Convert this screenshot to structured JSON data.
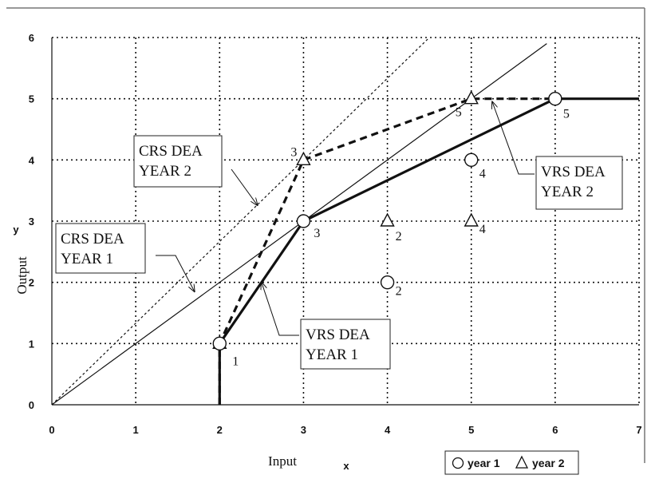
{
  "chart_data": {
    "type": "line",
    "xlabel": "Input",
    "ylabel": "Output",
    "x_axis_letter": "x",
    "y_axis_letter": "y",
    "xlim": [
      0,
      7
    ],
    "ylim": [
      0,
      6
    ],
    "x_ticks": [
      "0",
      "1",
      "2",
      "3",
      "4",
      "5",
      "6",
      "7"
    ],
    "y_ticks": [
      "0",
      "1",
      "2",
      "3",
      "4",
      "5",
      "6"
    ],
    "grid": true,
    "legend": {
      "placement": "bottom-right",
      "entries": [
        {
          "marker": "circle",
          "label": "year 1"
        },
        {
          "marker": "triangle",
          "label": "year 2"
        }
      ]
    },
    "points": [
      {
        "series": "year 1",
        "marker": "circle",
        "x": 2,
        "y": 1,
        "label": ""
      },
      {
        "series": "year 1",
        "marker": "circle",
        "x": 3,
        "y": 3,
        "label": "3"
      },
      {
        "series": "year 1",
        "marker": "circle",
        "x": 4,
        "y": 2,
        "label": "2"
      },
      {
        "series": "year 1",
        "marker": "circle",
        "x": 5,
        "y": 4,
        "label": "4"
      },
      {
        "series": "year 1",
        "marker": "circle",
        "x": 6,
        "y": 5,
        "label": "5"
      },
      {
        "series": "year 2",
        "marker": "triangle",
        "x": 2,
        "y": 1,
        "label": "1"
      },
      {
        "series": "year 2",
        "marker": "triangle",
        "x": 3,
        "y": 4,
        "label": "3"
      },
      {
        "series": "year 2",
        "marker": "triangle",
        "x": 4,
        "y": 3,
        "label": "2"
      },
      {
        "series": "year 2",
        "marker": "triangle",
        "x": 5,
        "y": 3,
        "label": "4"
      },
      {
        "series": "year 2",
        "marker": "triangle",
        "x": 5,
        "y": 5,
        "label": "5"
      }
    ],
    "lines": [
      {
        "id": "crs-year-1",
        "style": "thin-solid",
        "x": [
          0,
          5.9
        ],
        "y": [
          0,
          5.9
        ]
      },
      {
        "id": "crs-year-2",
        "style": "thin-dotted",
        "x": [
          0,
          4.5
        ],
        "y": [
          0,
          6
        ]
      },
      {
        "id": "vrs-year-1",
        "style": "thick-solid",
        "x": [
          2,
          2,
          3,
          6,
          7
        ],
        "y": [
          0,
          1,
          3,
          5,
          5
        ]
      },
      {
        "id": "vrs-year-2",
        "style": "thick-dashed",
        "x": [
          2,
          2,
          3,
          5,
          6
        ],
        "y": [
          0,
          1,
          4,
          5,
          5
        ]
      }
    ],
    "annotations": [
      {
        "id": "crs-dea-year-2",
        "lines": [
          "CRS DEA",
          "YEAR 2"
        ],
        "arrow_to": [
          2.45,
          3.26
        ]
      },
      {
        "id": "crs-dea-year-1",
        "lines": [
          "CRS DEA",
          "YEAR 1"
        ],
        "arrow_to": [
          1.7,
          1.85
        ]
      },
      {
        "id": "vrs-dea-year-1",
        "lines": [
          "VRS DEA",
          "YEAR 1"
        ],
        "arrow_to": [
          2.5,
          2.0
        ]
      },
      {
        "id": "vrs-dea-year-2",
        "lines": [
          "VRS DEA",
          "YEAR 2"
        ],
        "arrow_to": [
          5.25,
          4.95
        ]
      }
    ]
  }
}
